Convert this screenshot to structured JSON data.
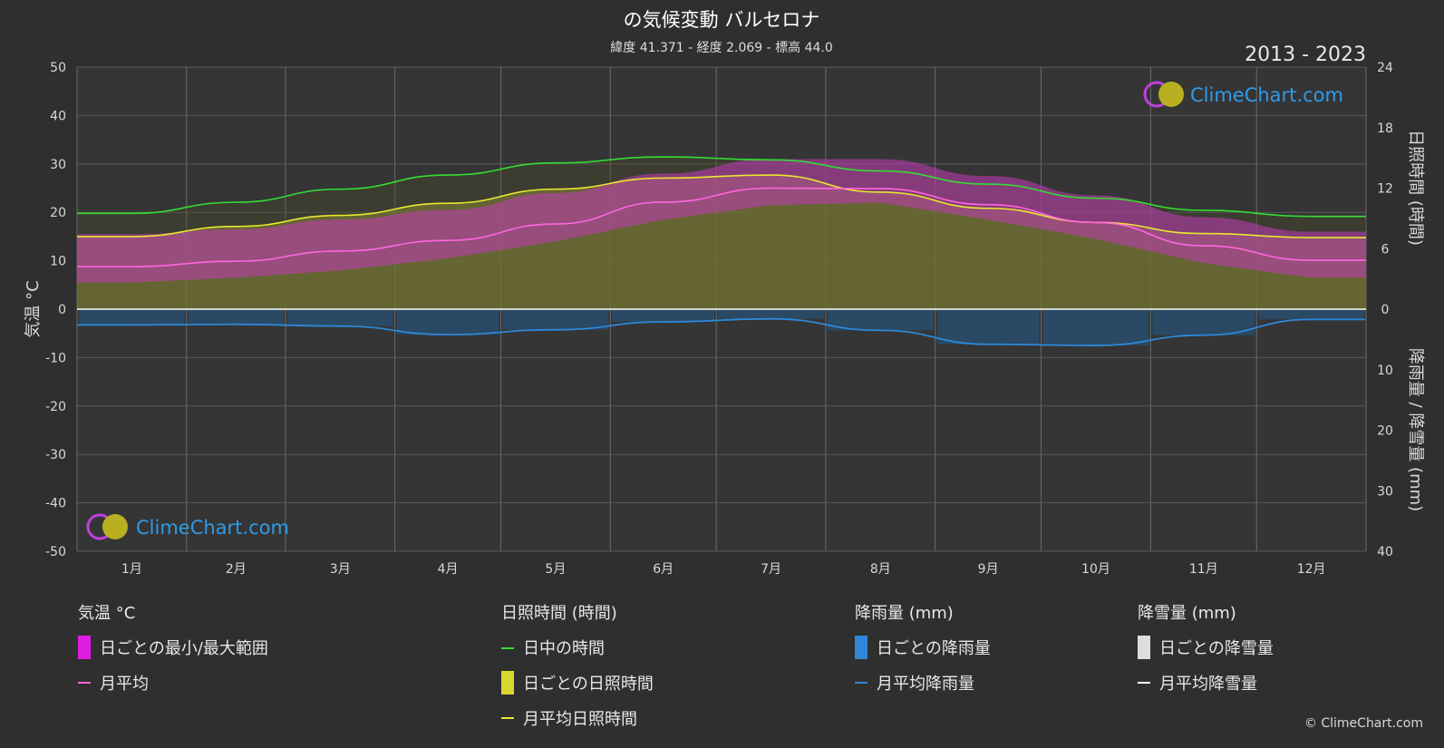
{
  "chart_data": {
    "type": "area",
    "title": "の気候変動 バルセロナ",
    "subtitle": "緯度 41.371 - 経度 2.069 - 標高 44.0",
    "period": "2013 - 2023",
    "months": [
      "1月",
      "2月",
      "3月",
      "4月",
      "5月",
      "6月",
      "7月",
      "8月",
      "9月",
      "10月",
      "11月",
      "12月"
    ],
    "left_axis": {
      "label": "気温 °C",
      "min": -50,
      "max": 50,
      "ticks": [
        "50",
        "40",
        "30",
        "20",
        "10",
        "0",
        "-10",
        "-20",
        "-30",
        "-40",
        "-50"
      ]
    },
    "right_axis_top": {
      "label": "日照時間 (時間)",
      "min": 0,
      "max": 24,
      "ticks": [
        "24",
        "18",
        "12",
        "6",
        "0"
      ]
    },
    "right_axis_bottom": {
      "label": "降雨量 / 降雪量 (mm)",
      "min": 0,
      "max": 40,
      "ticks": [
        "0",
        "10",
        "20",
        "30",
        "40"
      ]
    },
    "series": [
      {
        "name": "日中の時間",
        "color": "#33dd33",
        "unit": "hours",
        "values": [
          9.5,
          10.6,
          11.9,
          13.3,
          14.5,
          15.1,
          14.8,
          13.7,
          12.4,
          11.0,
          9.8,
          9.2
        ]
      },
      {
        "name": "月平均日照時間",
        "color": "#e8e830",
        "unit": "hours",
        "values": [
          7.2,
          8.2,
          9.3,
          10.5,
          11.9,
          13.0,
          13.3,
          11.6,
          10.0,
          8.6,
          7.5,
          7.1
        ]
      },
      {
        "name": "月平均",
        "color": "#ff66dd",
        "unit": "°C",
        "values": [
          8.8,
          9.9,
          12.0,
          14.2,
          17.6,
          22.1,
          25.0,
          24.9,
          21.6,
          17.9,
          13.1,
          10.1
        ]
      },
      {
        "name": "月平均降雨量",
        "color": "#2d88d8",
        "unit": "mm",
        "values": [
          2.6,
          2.5,
          2.8,
          4.2,
          3.4,
          2.1,
          1.6,
          3.5,
          5.8,
          6.0,
          4.3,
          1.7
        ]
      },
      {
        "name": "月平均降雪量",
        "color": "#ffffff",
        "unit": "mm",
        "values": [
          0,
          0,
          0,
          0,
          0,
          0,
          0,
          0,
          0,
          0,
          0,
          0
        ]
      }
    ],
    "daily_temperature_band": {
      "min": [
        5.5,
        6.5,
        8.0,
        10.5,
        14.0,
        18.5,
        21.5,
        22.0,
        18.5,
        14.5,
        9.5,
        6.5
      ],
      "max": [
        15.5,
        16.5,
        18.5,
        20.5,
        24.0,
        28.0,
        31.0,
        31.0,
        27.5,
        23.5,
        19.0,
        16.0
      ]
    },
    "grid": true,
    "colors": {
      "background": "#2f2f2f",
      "plot": "#353535",
      "grid": "#5a5a5a",
      "temp_band": "#c23ab8",
      "sunshine_fill": "#8a8a3a",
      "rain_bar": "#1f5a8a"
    }
  },
  "logo_text": "ClimeChart.com",
  "copyright": "© ClimeChart.com",
  "legend": [
    {
      "heading": "気温 °C",
      "items": [
        {
          "type": "swatch",
          "color": "#e11ce1",
          "label": "日ごとの最小/最大範囲"
        },
        {
          "type": "line",
          "color": "#ff66dd",
          "label": "月平均"
        }
      ]
    },
    {
      "heading": "日照時間 (時間)",
      "items": [
        {
          "type": "line",
          "color": "#33dd33",
          "label": "日中の時間"
        },
        {
          "type": "swatch",
          "color": "#d8d830",
          "label": "日ごとの日照時間"
        },
        {
          "type": "line",
          "color": "#e8e830",
          "label": "月平均日照時間"
        }
      ]
    },
    {
      "heading": "降雨量 (mm)",
      "items": [
        {
          "type": "swatch",
          "color": "#2d88d8",
          "label": "日ごとの降雨量"
        },
        {
          "type": "line",
          "color": "#2d88d8",
          "label": "月平均降雨量"
        }
      ]
    },
    {
      "heading": "降雪量 (mm)",
      "items": [
        {
          "type": "swatch",
          "color": "#dddddd",
          "label": "日ごとの降雪量"
        },
        {
          "type": "line",
          "color": "#ffffff",
          "label": "月平均降雪量"
        }
      ]
    }
  ]
}
